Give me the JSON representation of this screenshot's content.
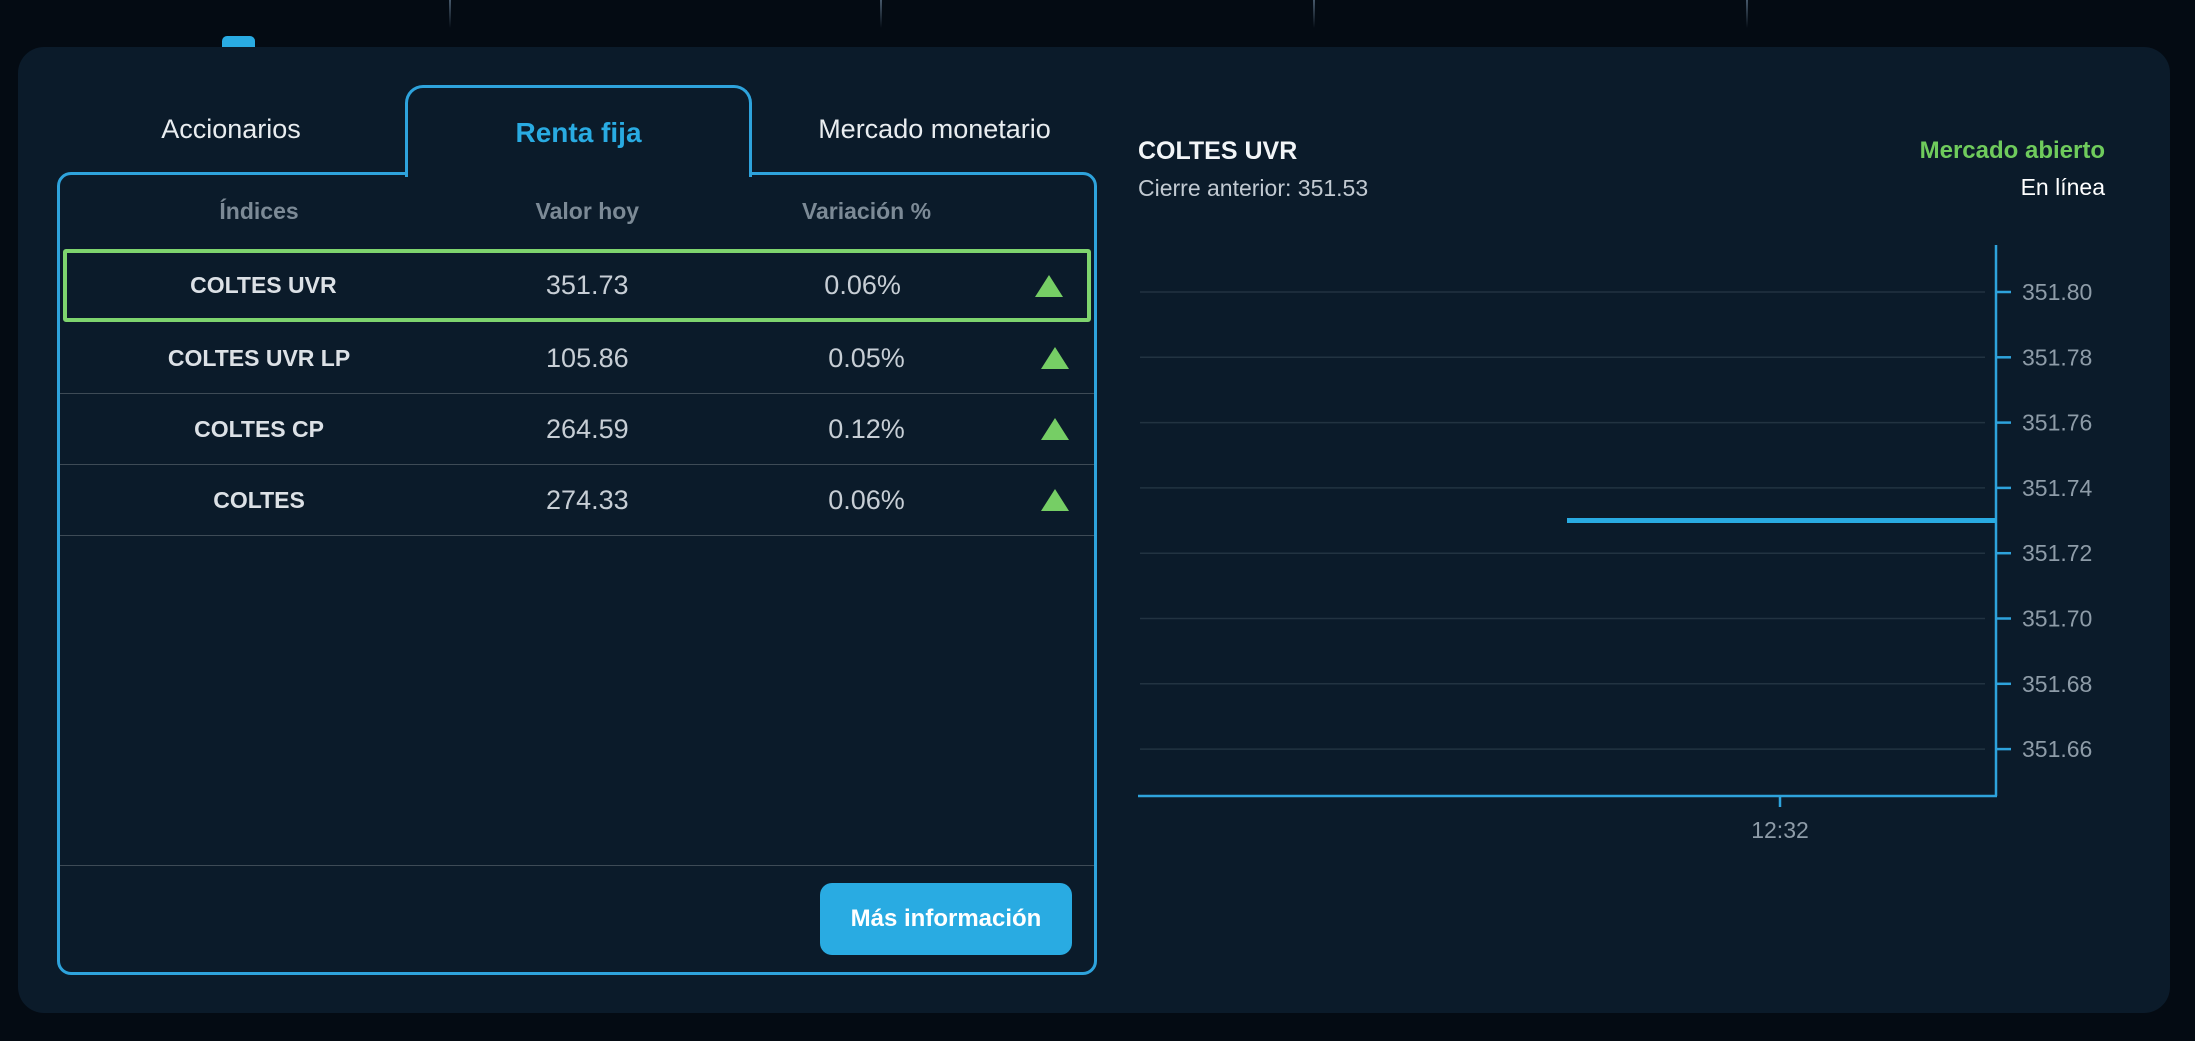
{
  "tabs": [
    {
      "label": "Accionarios",
      "active": false
    },
    {
      "label": "Renta fija",
      "active": true
    },
    {
      "label": "Mercado monetario",
      "active": false
    }
  ],
  "table": {
    "headers": [
      "Índices",
      "Valor hoy",
      "Variación %"
    ],
    "rows": [
      {
        "name": "COLTES UVR",
        "value": "351.73",
        "change": "0.06%",
        "direction": "up",
        "selected": true
      },
      {
        "name": "COLTES UVR LP",
        "value": "105.86",
        "change": "0.05%",
        "direction": "up",
        "selected": false
      },
      {
        "name": "COLTES CP",
        "value": "264.59",
        "change": "0.12%",
        "direction": "up",
        "selected": false
      },
      {
        "name": "COLTES",
        "value": "274.33",
        "change": "0.06%",
        "direction": "up",
        "selected": false
      }
    ],
    "more_info_label": "Más información"
  },
  "chart_header": {
    "title": "COLTES UVR",
    "previous_close": "Cierre anterior: 351.53",
    "market_status": "Mercado abierto",
    "online_status": "En línea"
  },
  "chart_data": {
    "type": "line",
    "title": "COLTES UVR",
    "previous_close": 351.53,
    "current_value": 351.73,
    "series": [
      {
        "name": "COLTES UVR",
        "values": [
          351.73,
          351.73
        ],
        "x_span_fraction": [
          0.5,
          1.0
        ]
      }
    ],
    "y_tick_labels": [
      "351.80",
      "351.78",
      "351.76",
      "351.74",
      "351.72",
      "351.70",
      "351.68",
      "351.66"
    ],
    "y_tick_max": 351.8,
    "y_tick_step": 0.02,
    "ylim": [
      351.645,
      351.815
    ],
    "x_tick_labels": [
      "12:32"
    ],
    "grid": true,
    "legend": "none",
    "axis_position": "right",
    "line_color": "#29ABE2",
    "axis_color": "#2EA3DC",
    "label_color": "#8E9CA8"
  },
  "colors": {
    "accent_cyan": "#29ABE2",
    "border_cyan": "#2EA3DC",
    "positive_green": "#7ED46E",
    "card_background": "#0B1B2A",
    "page_background": "#040B13"
  }
}
